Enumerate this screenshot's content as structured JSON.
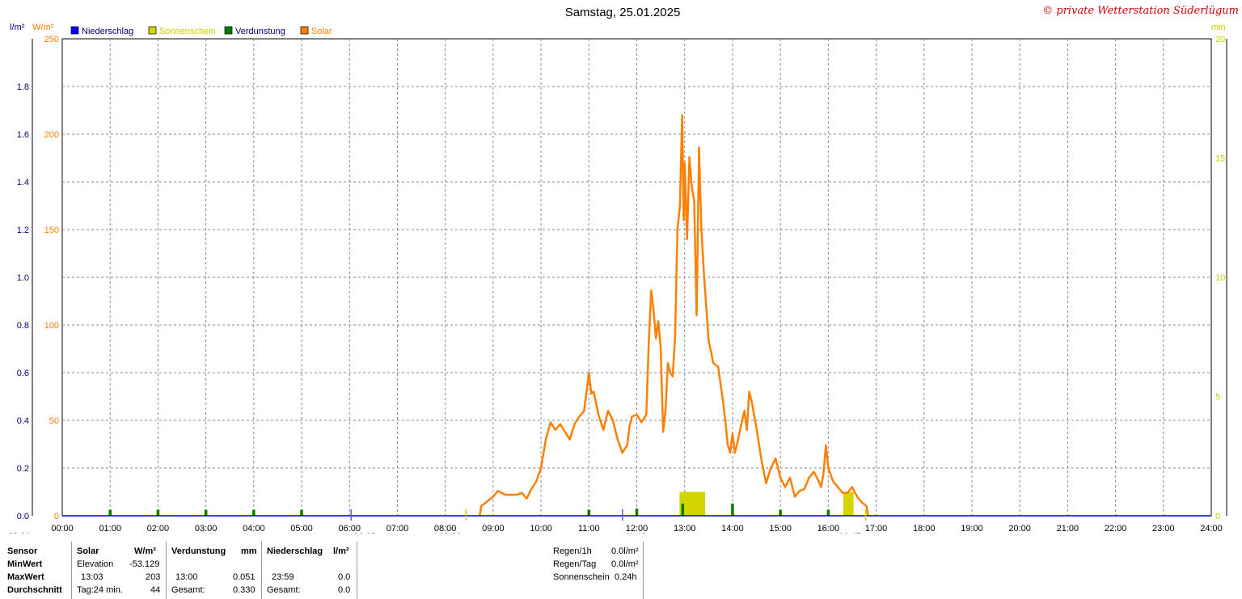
{
  "title": "Samstag, 25.01.2025",
  "copyright": "© private Wetterstation Süderlügum",
  "units": {
    "left_inner": "l/m²",
    "left_outer": "W/m²",
    "right": "min"
  },
  "legend": [
    {
      "label": "Niederschlag",
      "color": "#0000ff",
      "text_color": "#000080"
    },
    {
      "label": "Sonnenschein",
      "color": "#d4d400",
      "text_color": "#cccc00"
    },
    {
      "label": "Verdunstung",
      "color": "#008000",
      "text_color": "#000080"
    },
    {
      "label": "Solar",
      "color": "#ff8000",
      "text_color": "#ff8000"
    }
  ],
  "markers": {
    "left_label": "08:21",
    "sun_start": "08:26",
    "sun_end": "16:47",
    "civil_start": "06:02",
    "noon": "11:42"
  },
  "chart_data": {
    "type": "line",
    "title": "Samstag, 25.01.2025",
    "x_range": [
      0,
      24
    ],
    "x_ticks": [
      "00:00",
      "01:00",
      "02:00",
      "03:00",
      "04:00",
      "05:00",
      "06:00",
      "07:00",
      "08:00",
      "09:00",
      "10:00",
      "11:00",
      "12:00",
      "13:00",
      "14:00",
      "15:00",
      "16:00",
      "17:00",
      "18:00",
      "19:00",
      "20:00",
      "21:00",
      "22:00",
      "23:00",
      "24:00"
    ],
    "y_axes": [
      {
        "name": "l/m²",
        "range": [
          0,
          2.0
        ],
        "ticks": [
          "0.0",
          "0.2",
          "0.4",
          "0.6",
          "0.8",
          "1.0",
          "1.2",
          "1.4",
          "1.6",
          "1.8",
          ""
        ]
      },
      {
        "name": "W/m²",
        "range": [
          0,
          250
        ],
        "ticks": [
          "0",
          "50",
          "100",
          "150",
          "200",
          "250"
        ]
      },
      {
        "name": "min",
        "range": [
          0,
          20
        ],
        "ticks": [
          "0",
          "5",
          "10",
          "15",
          "20"
        ]
      }
    ],
    "grid": true,
    "legend_position": "top-left",
    "series": [
      {
        "name": "Solar",
        "axis": "W/m²",
        "color": "#ff8000",
        "points": [
          [
            8.72,
            0
          ],
          [
            8.75,
            5
          ],
          [
            8.9,
            8
          ],
          [
            9.0,
            10
          ],
          [
            9.1,
            13
          ],
          [
            9.25,
            11
          ],
          [
            9.5,
            11
          ],
          [
            9.6,
            12
          ],
          [
            9.7,
            9
          ],
          [
            9.8,
            14
          ],
          [
            9.9,
            18
          ],
          [
            10.0,
            25
          ],
          [
            10.1,
            40
          ],
          [
            10.2,
            49
          ],
          [
            10.3,
            45
          ],
          [
            10.4,
            48
          ],
          [
            10.5,
            44
          ],
          [
            10.6,
            40
          ],
          [
            10.7,
            48
          ],
          [
            10.8,
            52
          ],
          [
            10.9,
            55
          ],
          [
            11.0,
            75
          ],
          [
            11.05,
            64
          ],
          [
            11.1,
            65
          ],
          [
            11.2,
            53
          ],
          [
            11.3,
            45
          ],
          [
            11.4,
            55
          ],
          [
            11.5,
            50
          ],
          [
            11.6,
            40
          ],
          [
            11.7,
            33
          ],
          [
            11.8,
            37
          ],
          [
            11.85,
            47
          ],
          [
            11.9,
            52
          ],
          [
            12.0,
            53
          ],
          [
            12.1,
            49
          ],
          [
            12.2,
            53
          ],
          [
            12.25,
            90
          ],
          [
            12.3,
            118
          ],
          [
            12.35,
            108
          ],
          [
            12.4,
            93
          ],
          [
            12.45,
            102
          ],
          [
            12.5,
            88
          ],
          [
            12.55,
            44
          ],
          [
            12.6,
            55
          ],
          [
            12.65,
            80
          ],
          [
            12.7,
            75
          ],
          [
            12.75,
            73
          ],
          [
            12.8,
            94
          ],
          [
            12.85,
            150
          ],
          [
            12.9,
            162
          ],
          [
            12.95,
            210
          ],
          [
            12.98,
            155
          ],
          [
            13.0,
            185
          ],
          [
            13.05,
            145
          ],
          [
            13.1,
            188
          ],
          [
            13.15,
            172
          ],
          [
            13.2,
            165
          ],
          [
            13.25,
            105
          ],
          [
            13.3,
            193
          ],
          [
            13.35,
            150
          ],
          [
            13.4,
            128
          ],
          [
            13.5,
            92
          ],
          [
            13.6,
            80
          ],
          [
            13.7,
            78
          ],
          [
            13.8,
            60
          ],
          [
            13.85,
            50
          ],
          [
            13.9,
            37
          ],
          [
            13.95,
            33
          ],
          [
            14.0,
            43
          ],
          [
            14.05,
            33
          ],
          [
            14.1,
            38
          ],
          [
            14.2,
            50
          ],
          [
            14.25,
            55
          ],
          [
            14.3,
            45
          ],
          [
            14.35,
            65
          ],
          [
            14.4,
            60
          ],
          [
            14.5,
            46
          ],
          [
            14.6,
            30
          ],
          [
            14.7,
            17
          ],
          [
            14.8,
            25
          ],
          [
            14.9,
            30
          ],
          [
            15.0,
            20
          ],
          [
            15.1,
            15
          ],
          [
            15.2,
            20
          ],
          [
            15.3,
            10
          ],
          [
            15.4,
            13
          ],
          [
            15.5,
            14
          ],
          [
            15.6,
            20
          ],
          [
            15.7,
            23
          ],
          [
            15.8,
            18
          ],
          [
            15.85,
            15
          ],
          [
            15.9,
            22
          ],
          [
            15.95,
            37
          ],
          [
            16.0,
            25
          ],
          [
            16.1,
            18
          ],
          [
            16.2,
            15
          ],
          [
            16.3,
            12
          ],
          [
            16.4,
            12
          ],
          [
            16.5,
            15
          ],
          [
            16.6,
            10
          ],
          [
            16.7,
            7
          ],
          [
            16.8,
            5
          ],
          [
            16.83,
            0
          ]
        ]
      },
      {
        "name": "Sonnenschein",
        "axis": "min",
        "color": "#d4d400",
        "bars": [
          [
            12.96,
            1
          ],
          [
            13.08,
            1
          ],
          [
            13.16,
            1
          ],
          [
            13.28,
            1
          ],
          [
            13.36,
            1
          ],
          [
            16.38,
            1
          ],
          [
            16.46,
            1
          ]
        ]
      },
      {
        "name": "Verdunstung",
        "axis": "l/m²",
        "color": "#008000",
        "bars": [
          [
            1,
            0.025
          ],
          [
            2,
            0.025
          ],
          [
            3,
            0.025
          ],
          [
            4,
            0.025
          ],
          [
            5,
            0.025
          ],
          [
            11,
            0.025
          ],
          [
            12,
            0.03
          ],
          [
            12.96,
            0.051
          ],
          [
            14,
            0.051
          ],
          [
            15,
            0.025
          ],
          [
            16,
            0.025
          ]
        ]
      },
      {
        "name": "Niederschlag",
        "axis": "l/m²",
        "color": "#0000ff",
        "bars": []
      }
    ]
  },
  "stats": {
    "solar": {
      "header": "Solar",
      "unit": "W/m²",
      "rows": [
        {
          "label": "Sensor",
          "left": "",
          "right": ""
        },
        {
          "label": "MinWert",
          "left": "Elevation",
          "right": "-53.129"
        },
        {
          "label": "MaxWert",
          "left": "13:03",
          "right": "203"
        },
        {
          "label": "Durchschnitt",
          "left": "Tag:24 min.",
          "right": "44"
        }
      ]
    },
    "verdunstung": {
      "header": "Verdunstung",
      "unit": "mm",
      "max": {
        "time": "13:00",
        "value": "0.051"
      },
      "total": {
        "label": "Gesamt:",
        "value": "0.330"
      }
    },
    "niederschlag": {
      "header": "Niederschlag",
      "unit": "l/m²",
      "max": {
        "time": "23:59",
        "value": "0.0"
      },
      "total": {
        "label": "Gesamt:",
        "value": "0.0"
      }
    },
    "summary": [
      {
        "label": "Regen/1h",
        "value": "0.0l/m²"
      },
      {
        "label": "Regen/Tag",
        "value": "0.0l/m²"
      },
      {
        "label": "Sonnenschein",
        "value": "0.24h"
      }
    ]
  }
}
